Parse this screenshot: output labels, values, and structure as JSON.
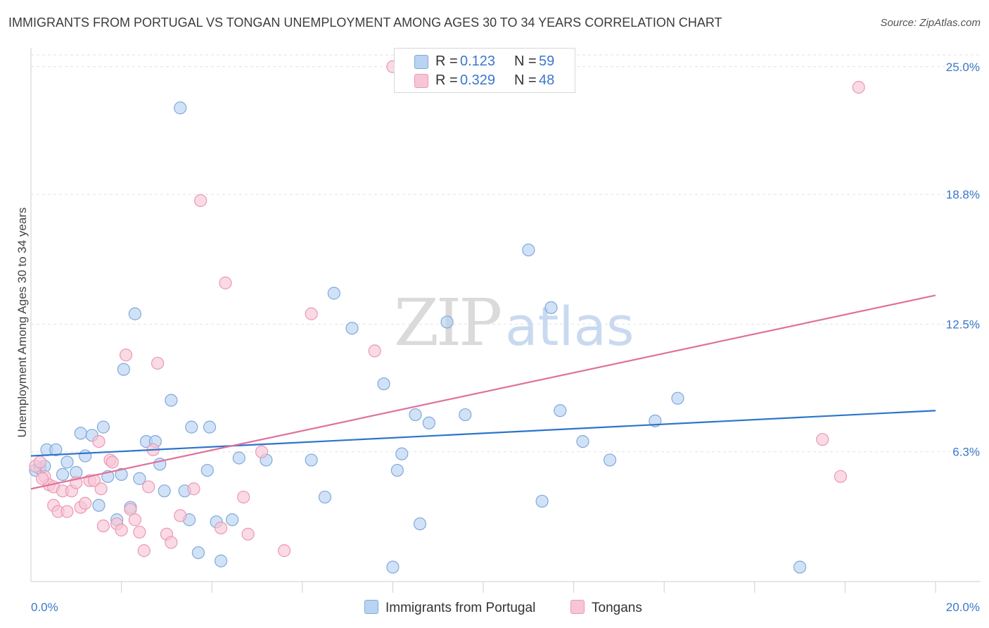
{
  "title": "IMMIGRANTS FROM PORTUGAL VS TONGAN UNEMPLOYMENT AMONG AGES 30 TO 34 YEARS CORRELATION CHART",
  "source": "Source: ZipAtlas.com",
  "watermark": {
    "zip": "ZIP",
    "atlas": "atlas"
  },
  "colors": {
    "blue_fill": "#b9d3f2",
    "blue_stroke": "#7fa9dc",
    "blue_line": "#2d74cc",
    "pink_fill": "#f7c6d5",
    "pink_stroke": "#ec98b3",
    "pink_line": "#e0719a",
    "tick_label": "#3a78c8",
    "grid": "#e2e2e2"
  },
  "legend_top": [
    {
      "r_label": "R =",
      "r_value": "0.123",
      "n_label": "N =",
      "n_value": "59"
    },
    {
      "r_label": "R =",
      "r_value": "0.329",
      "n_label": "N =",
      "n_value": "48"
    }
  ],
  "legend_bottom": [
    "Immigrants from Portugal",
    "Tongans"
  ],
  "chart_data": {
    "type": "scatter",
    "title": "IMMIGRANTS FROM PORTUGAL VS TONGAN UNEMPLOYMENT AMONG AGES 30 TO 34 YEARS CORRELATION CHART",
    "xlabel": "",
    "ylabel": "Unemployment Among Ages 30 to 34 years",
    "xlim": [
      0,
      20
    ],
    "ylim": [
      0,
      25.7
    ],
    "x_tick_labels": [
      {
        "value": 0,
        "label": "0.0%"
      },
      {
        "value": 20,
        "label": "20.0%"
      }
    ],
    "y_ticks": [
      {
        "value": 6.3,
        "label": "6.3%"
      },
      {
        "value": 12.5,
        "label": "12.5%"
      },
      {
        "value": 18.8,
        "label": "18.8%"
      },
      {
        "value": 25.0,
        "label": "25.0%"
      }
    ],
    "x_minor_ticks": [
      2,
      4,
      6,
      8,
      10,
      12,
      14,
      16,
      18,
      20
    ],
    "grid": true,
    "legend_position": "top-center",
    "series": [
      {
        "name": "Immigrants from Portugal",
        "color": "#b9d3f2",
        "trend": {
          "x": [
            0,
            20
          ],
          "y": [
            6.1,
            8.3
          ]
        },
        "points": [
          [
            0.1,
            5.4
          ],
          [
            0.2,
            5.5
          ],
          [
            0.3,
            5.6
          ],
          [
            0.35,
            6.4
          ],
          [
            0.55,
            6.4
          ],
          [
            0.7,
            5.2
          ],
          [
            0.8,
            5.8
          ],
          [
            1.0,
            5.3
          ],
          [
            1.1,
            7.2
          ],
          [
            1.2,
            6.1
          ],
          [
            1.35,
            7.1
          ],
          [
            1.5,
            3.7
          ],
          [
            1.6,
            7.5
          ],
          [
            1.7,
            5.1
          ],
          [
            1.9,
            3.0
          ],
          [
            2.0,
            5.2
          ],
          [
            2.05,
            10.3
          ],
          [
            2.2,
            3.6
          ],
          [
            2.3,
            13.0
          ],
          [
            2.4,
            5.0
          ],
          [
            2.55,
            6.8
          ],
          [
            2.75,
            6.8
          ],
          [
            2.85,
            5.7
          ],
          [
            2.95,
            4.4
          ],
          [
            3.1,
            8.8
          ],
          [
            3.3,
            23.0
          ],
          [
            3.4,
            4.4
          ],
          [
            3.5,
            3.0
          ],
          [
            3.55,
            7.5
          ],
          [
            3.7,
            1.4
          ],
          [
            3.9,
            5.4
          ],
          [
            3.95,
            7.5
          ],
          [
            4.1,
            2.9
          ],
          [
            4.2,
            1.0
          ],
          [
            4.45,
            3.0
          ],
          [
            4.6,
            6.0
          ],
          [
            5.2,
            5.9
          ],
          [
            6.2,
            5.9
          ],
          [
            6.5,
            4.1
          ],
          [
            6.7,
            14.0
          ],
          [
            7.1,
            12.3
          ],
          [
            7.8,
            9.6
          ],
          [
            8.0,
            0.7
          ],
          [
            8.1,
            5.4
          ],
          [
            8.2,
            6.2
          ],
          [
            8.5,
            8.1
          ],
          [
            8.6,
            2.8
          ],
          [
            8.8,
            7.7
          ],
          [
            9.2,
            12.6
          ],
          [
            9.6,
            8.1
          ],
          [
            11.0,
            16.1
          ],
          [
            11.3,
            3.9
          ],
          [
            11.5,
            13.3
          ],
          [
            11.7,
            8.3
          ],
          [
            12.2,
            6.8
          ],
          [
            12.8,
            5.9
          ],
          [
            13.8,
            7.8
          ],
          [
            14.3,
            8.9
          ],
          [
            17.0,
            0.7
          ]
        ]
      },
      {
        "name": "Tongans",
        "color": "#f7c6d5",
        "trend": {
          "x": [
            0,
            20
          ],
          "y": [
            4.5,
            13.9
          ]
        },
        "points": [
          [
            0.1,
            5.6
          ],
          [
            0.2,
            5.8
          ],
          [
            0.3,
            5.1
          ],
          [
            0.4,
            4.7
          ],
          [
            0.5,
            4.6
          ],
          [
            0.5,
            3.7
          ],
          [
            0.6,
            3.4
          ],
          [
            0.7,
            4.4
          ],
          [
            0.8,
            3.4
          ],
          [
            0.9,
            4.4
          ],
          [
            1.0,
            4.8
          ],
          [
            1.1,
            3.6
          ],
          [
            1.2,
            3.8
          ],
          [
            1.3,
            4.9
          ],
          [
            1.4,
            4.9
          ],
          [
            1.5,
            6.8
          ],
          [
            1.55,
            4.5
          ],
          [
            1.6,
            2.7
          ],
          [
            1.75,
            5.9
          ],
          [
            1.8,
            5.8
          ],
          [
            1.9,
            2.8
          ],
          [
            2.0,
            2.5
          ],
          [
            2.1,
            11.0
          ],
          [
            2.2,
            3.5
          ],
          [
            2.3,
            3.0
          ],
          [
            2.4,
            2.4
          ],
          [
            2.5,
            1.5
          ],
          [
            2.6,
            4.6
          ],
          [
            2.7,
            6.4
          ],
          [
            2.8,
            10.6
          ],
          [
            3.0,
            2.3
          ],
          [
            3.1,
            1.9
          ],
          [
            3.3,
            3.2
          ],
          [
            3.6,
            4.5
          ],
          [
            3.75,
            18.5
          ],
          [
            4.2,
            2.6
          ],
          [
            4.3,
            14.5
          ],
          [
            4.7,
            4.1
          ],
          [
            4.8,
            2.3
          ],
          [
            5.1,
            6.3
          ],
          [
            5.6,
            1.5
          ],
          [
            6.2,
            13.0
          ],
          [
            7.6,
            11.2
          ],
          [
            8.0,
            25.0
          ],
          [
            17.5,
            6.9
          ],
          [
            17.9,
            5.1
          ],
          [
            18.3,
            24.0
          ],
          [
            0.25,
            5.0
          ]
        ]
      }
    ]
  }
}
